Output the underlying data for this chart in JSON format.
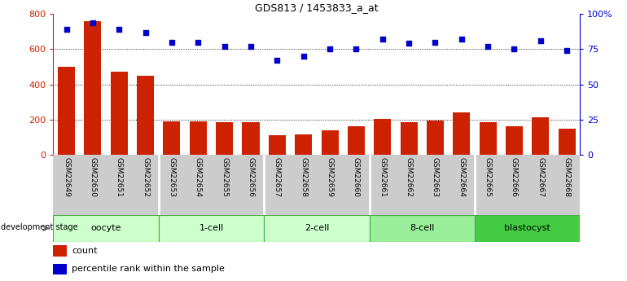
{
  "title": "GDS813 / 1453833_a_at",
  "samples": [
    "GSM22649",
    "GSM22650",
    "GSM22651",
    "GSM22652",
    "GSM22653",
    "GSM22654",
    "GSM22655",
    "GSM22656",
    "GSM22657",
    "GSM22658",
    "GSM22659",
    "GSM22660",
    "GSM22661",
    "GSM22662",
    "GSM22663",
    "GSM22664",
    "GSM22665",
    "GSM22666",
    "GSM22667",
    "GSM22668"
  ],
  "counts": [
    500,
    760,
    470,
    450,
    190,
    190,
    185,
    185,
    110,
    115,
    140,
    160,
    205,
    185,
    195,
    240,
    185,
    160,
    210,
    145
  ],
  "percentile": [
    89,
    94,
    89,
    87,
    80,
    80,
    77,
    77,
    67,
    70,
    75,
    75,
    82,
    79,
    80,
    82,
    77,
    75,
    81,
    74
  ],
  "groups": [
    {
      "label": "oocyte",
      "start": 0,
      "end": 4,
      "color": "#ccffcc"
    },
    {
      "label": "1-cell",
      "start": 4,
      "end": 8,
      "color": "#ccffcc"
    },
    {
      "label": "2-cell",
      "start": 8,
      "end": 12,
      "color": "#ccffcc"
    },
    {
      "label": "8-cell",
      "start": 12,
      "end": 16,
      "color": "#99ee99"
    },
    {
      "label": "blastocyst",
      "start": 16,
      "end": 20,
      "color": "#44cc44"
    }
  ],
  "bar_color": "#cc2200",
  "dot_color": "#0000cc",
  "left_ylim": [
    0,
    800
  ],
  "right_ylim": [
    0,
    100
  ],
  "left_yticks": [
    0,
    200,
    400,
    600,
    800
  ],
  "right_yticks": [
    0,
    25,
    50,
    75,
    100
  ],
  "right_yticklabels": [
    "0",
    "25",
    "50",
    "75",
    "100%"
  ],
  "grid_values": [
    200,
    400,
    600
  ],
  "figsize": [
    7.7,
    3.45
  ],
  "dpi": 100,
  "group_border_color": "#44aa44",
  "tick_bg_color": "#cccccc",
  "tick_border_color": "#aaaaaa"
}
